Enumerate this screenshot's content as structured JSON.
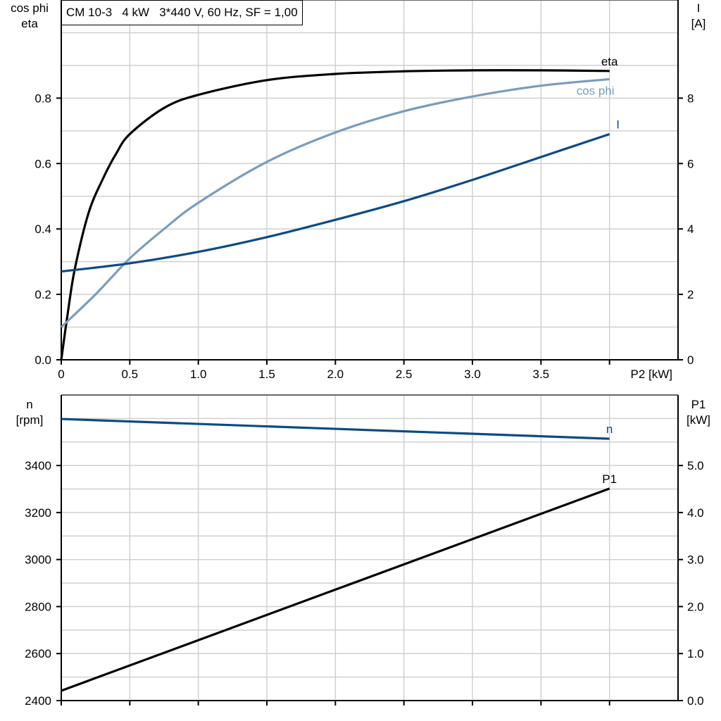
{
  "title": "CM 10-3   4 kW   3*440 V, 60 Hz, SF = 1,00",
  "chart_data": [
    {
      "type": "line",
      "xlabel": "P2 [kW]",
      "ylabel_left": [
        "cos phi",
        "eta"
      ],
      "ylabel_right": [
        "I",
        "[A]"
      ],
      "xlim": [
        0,
        4.5
      ],
      "ylim_left": [
        0,
        1.1
      ],
      "ylim_right": [
        0,
        11
      ],
      "grid": true,
      "x_ticks": [
        "0",
        "0.5",
        "1.0",
        "1.5",
        "2.0",
        "2.5",
        "3.0",
        "3.5"
      ],
      "y_left_ticks": [
        "0.0",
        "0.2",
        "0.4",
        "0.6",
        "0.8"
      ],
      "y_right_ticks": [
        "0",
        "2",
        "4",
        "6",
        "8"
      ],
      "series": [
        {
          "name": "eta",
          "axis": "left",
          "color": "#000000",
          "x": [
            0,
            0.05,
            0.1,
            0.2,
            0.3,
            0.4,
            0.5,
            0.75,
            1.0,
            1.5,
            2.0,
            2.5,
            3.0,
            3.5,
            4.0
          ],
          "y": [
            0,
            0.15,
            0.28,
            0.45,
            0.55,
            0.63,
            0.69,
            0.77,
            0.81,
            0.855,
            0.874,
            0.882,
            0.885,
            0.885,
            0.883
          ]
        },
        {
          "name": "cos phi",
          "axis": "left",
          "color": "#7a9cbd",
          "x": [
            0,
            0.25,
            0.5,
            0.75,
            1.0,
            1.5,
            2.0,
            2.5,
            3.0,
            3.5,
            4.0
          ],
          "y": [
            0.1,
            0.2,
            0.31,
            0.4,
            0.48,
            0.605,
            0.695,
            0.76,
            0.805,
            0.838,
            0.858
          ]
        },
        {
          "name": "I",
          "axis": "right",
          "color": "#0d4a86",
          "x": [
            0,
            0.5,
            1.0,
            1.5,
            2.0,
            2.5,
            3.0,
            3.5,
            4.0
          ],
          "y": [
            2.7,
            2.95,
            3.3,
            3.75,
            4.28,
            4.85,
            5.5,
            6.2,
            6.9
          ]
        }
      ]
    },
    {
      "type": "line",
      "xlim": [
        0,
        4.5
      ],
      "ylabel_left": [
        "n",
        "[rpm]"
      ],
      "ylabel_right": [
        "P1",
        "[kW]"
      ],
      "ylim_left": [
        2400,
        3700
      ],
      "ylim_right": [
        0,
        6.5
      ],
      "grid": true,
      "y_left_ticks": [
        "2400",
        "2600",
        "2800",
        "3000",
        "3200",
        "3400"
      ],
      "y_right_ticks": [
        "0.0",
        "1.0",
        "2.0",
        "3.0",
        "4.0",
        "5.0"
      ],
      "series": [
        {
          "name": "n",
          "axis": "left",
          "color": "#0d4a86",
          "x": [
            0,
            4.0
          ],
          "y": [
            3598,
            3514
          ]
        },
        {
          "name": "P1",
          "axis": "right",
          "color": "#000000",
          "x": [
            0,
            4.0
          ],
          "y": [
            0.21,
            4.51
          ]
        }
      ]
    }
  ]
}
